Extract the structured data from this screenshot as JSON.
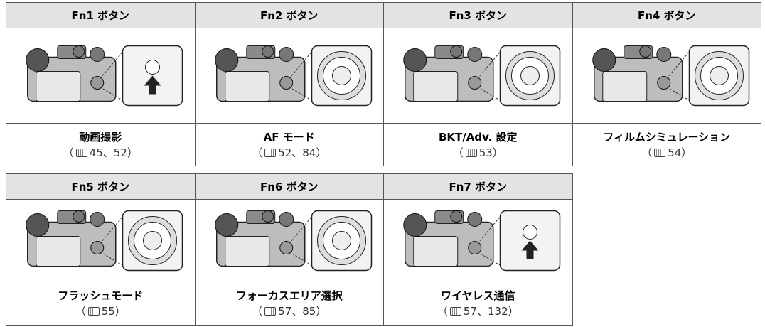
{
  "ref_open": "（",
  "ref_close": "）",
  "tables": [
    {
      "cells": [
        {
          "header": "Fn1 ボタン",
          "function": "動画撮影",
          "pages": "45、52"
        },
        {
          "header": "Fn2 ボタン",
          "function": "AF モード",
          "pages": "52、84"
        },
        {
          "header": "Fn3 ボタン",
          "function": "BKT/Adv. 設定",
          "pages": "53"
        },
        {
          "header": "Fn4 ボタン",
          "function": "フィルムシミュレーション",
          "pages": "54"
        }
      ]
    },
    {
      "cells": [
        {
          "header": "Fn5 ボタン",
          "function": "フラッシュモード",
          "pages": "55"
        },
        {
          "header": "Fn6 ボタン",
          "function": "フォーカスエリア選択",
          "pages": "57、85"
        },
        {
          "header": "Fn7 ボタン",
          "function": "ワイヤレス通信",
          "pages": "57、132"
        }
      ]
    }
  ]
}
